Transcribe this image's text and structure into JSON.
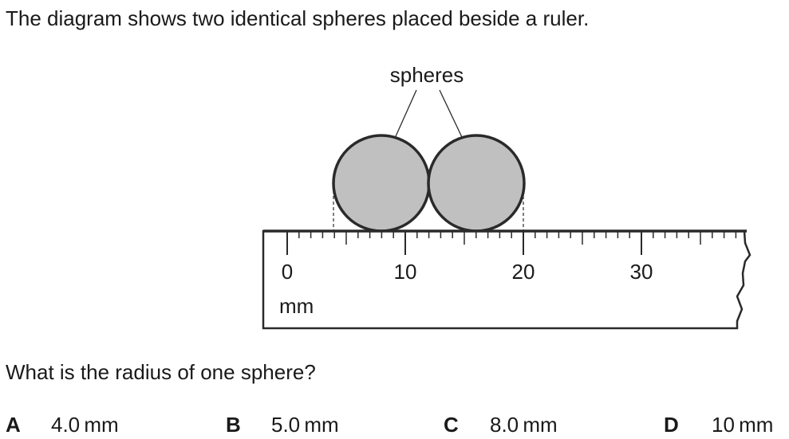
{
  "question": {
    "intro": "The diagram shows two identical spheres placed beside a ruler.",
    "prompt": "What is the radius of one sphere?"
  },
  "diagram": {
    "label": "spheres",
    "ruler": {
      "unit": "mm",
      "tick_labels": [
        "0",
        "10",
        "20",
        "30"
      ]
    },
    "colors": {
      "sphere_fill": "#c0c0c0",
      "outline": "#2a2a2a"
    }
  },
  "options": [
    {
      "letter": "A",
      "value": "4.0 mm"
    },
    {
      "letter": "B",
      "value": "5.0 mm"
    },
    {
      "letter": "C",
      "value": "8.0 mm"
    },
    {
      "letter": "D",
      "value": "10 mm"
    }
  ]
}
